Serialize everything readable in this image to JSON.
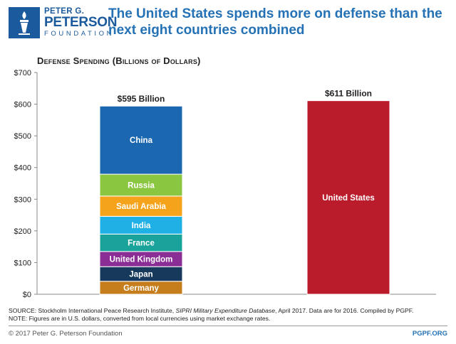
{
  "logo": {
    "line1": "PETER G.",
    "line2": "PETERSON",
    "line3": "FOUNDATION",
    "color": "#1b5a9c"
  },
  "headline": "The United States spends more on defense than the next eight countries combined",
  "chart_data": {
    "type": "bar",
    "stacked": true,
    "title": "Defense Spending (Billions of Dollars)",
    "ylim": [
      0,
      700
    ],
    "yticks": [
      0,
      100,
      200,
      300,
      400,
      500,
      600,
      700
    ],
    "ytick_labels": [
      "$0",
      "$100",
      "$200",
      "$300",
      "$400",
      "$500",
      "$600",
      "$700"
    ],
    "grid": false,
    "bars": [
      {
        "total_label": "$595 Billion",
        "segments": [
          {
            "name": "Germany",
            "value": 41,
            "color": "#c67e1d"
          },
          {
            "name": "Japan",
            "value": 46,
            "color": "#173a5c"
          },
          {
            "name": "United Kingdom",
            "value": 48,
            "color": "#8a2e95"
          },
          {
            "name": "France",
            "value": 55,
            "color": "#1aa39a"
          },
          {
            "name": "India",
            "value": 56,
            "color": "#1fb0e6"
          },
          {
            "name": "Saudi Arabia",
            "value": 64,
            "color": "#f5a31a"
          },
          {
            "name": "Russia",
            "value": 69,
            "color": "#8bc641"
          },
          {
            "name": "China",
            "value": 215,
            "color": "#1b68b0"
          }
        ]
      },
      {
        "total_label": "$611 Billion",
        "segments": [
          {
            "name": "United States",
            "value": 611,
            "color": "#bb1c2c"
          }
        ]
      }
    ]
  },
  "source_line1_prefix": "SOURCE: Stockholm International Peace Research Institute, ",
  "source_line1_italic": "SIPRI Military Expenditure Database",
  "source_line1_suffix": ", April 2017. Data are for 2016. Compiled by PGPF.",
  "source_line2": "NOTE: Figures are in U.S. dollars, converted from local currencies using market exchange rates.",
  "copyright": "© 2017 Peter G. Peterson Foundation",
  "site": "PGPF.ORG"
}
